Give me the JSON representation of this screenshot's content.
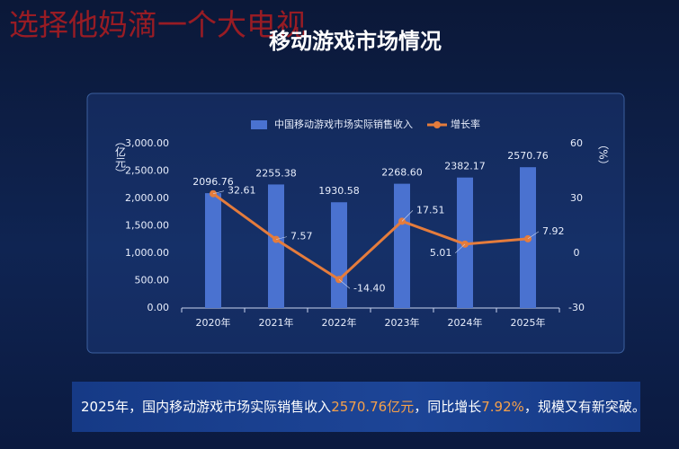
{
  "watermark": "选择他妈滴一个大电视",
  "chart_data": {
    "type": "bar",
    "title": "移动游戏市场情况",
    "y_label": "（亿元）",
    "y2_label": "（%）",
    "categories": [
      "2020年",
      "2021年",
      "2022年",
      "2023年",
      "2024年",
      "2025年"
    ],
    "series": [
      {
        "name": "中国移动游戏市场实际销售收入",
        "type": "bar",
        "color": "#4a72d0",
        "values": [
          2096.76,
          2255.38,
          1930.58,
          2268.6,
          2382.17,
          2570.76
        ],
        "value_labels": [
          "2096.76",
          "2255.38",
          "1930.58",
          "2268.60",
          "2382.17",
          "2570.76"
        ]
      },
      {
        "name": "增长率",
        "type": "line",
        "axis": "y2",
        "color": "#e57c3c",
        "values": [
          32.61,
          7.57,
          -14.4,
          17.51,
          5.01,
          7.92
        ],
        "value_labels": [
          "32.61",
          "7.57",
          "-14.40",
          "17.51",
          "5.01",
          "7.92"
        ]
      }
    ],
    "ylim": [
      0,
      3000
    ],
    "yticks": [
      {
        "value": 0,
        "label": "0.00"
      },
      {
        "value": 500,
        "label": "500.00"
      },
      {
        "value": 1000,
        "label": "1,000.00"
      },
      {
        "value": 1500,
        "label": "1,500.00"
      },
      {
        "value": 2000,
        "label": "2,000.00"
      },
      {
        "value": 2500,
        "label": "2,500.00"
      },
      {
        "value": 3000,
        "label": "3,000.00"
      }
    ],
    "y2lim": [
      -30,
      60
    ],
    "y2ticks": [
      -30,
      0,
      30,
      60
    ],
    "grid": false,
    "legend": "top"
  },
  "footer": [
    "2025年，国内移动游戏市场实际销售收入",
    "2570.76亿元",
    "，同比增长",
    "7.92%",
    "，规模又有新突破。"
  ]
}
